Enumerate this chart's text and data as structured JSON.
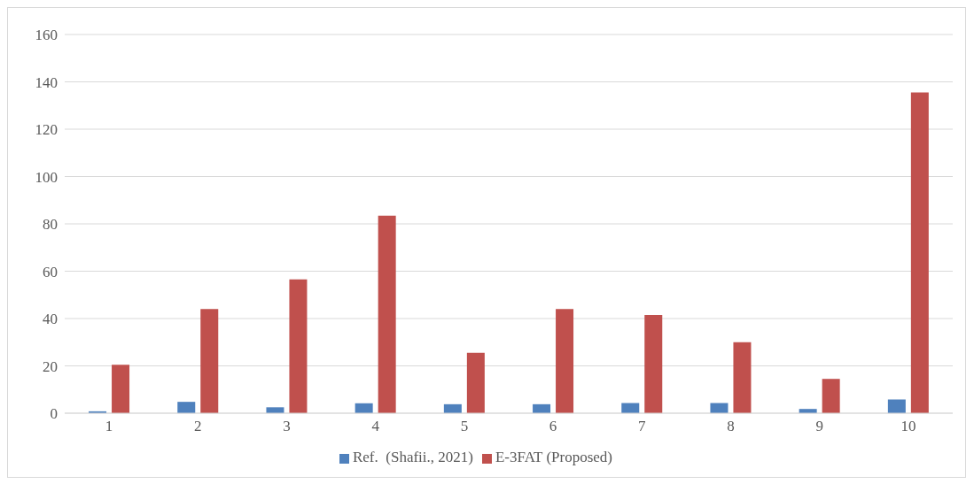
{
  "chart_data": {
    "type": "bar",
    "categories": [
      "1",
      "2",
      "3",
      "4",
      "5",
      "6",
      "7",
      "8",
      "9",
      "10"
    ],
    "series": [
      {
        "name": "Ref.  (Shafii., 2021)",
        "color": "#4f81bd",
        "values": [
          0.8,
          4.8,
          2.5,
          4.2,
          3.8,
          3.8,
          4.3,
          4.3,
          1.8,
          5.8
        ]
      },
      {
        "name": "E-3FAT (Proposed)",
        "color": "#c0504d",
        "values": [
          20.5,
          44,
          56.5,
          83.5,
          25.5,
          44,
          41.5,
          30,
          14.5,
          135.5
        ]
      }
    ],
    "ylim": [
      0,
      160
    ],
    "yticks": [
      0,
      20,
      40,
      60,
      80,
      100,
      120,
      140,
      160
    ],
    "grid": "y",
    "legend": "bottom"
  }
}
